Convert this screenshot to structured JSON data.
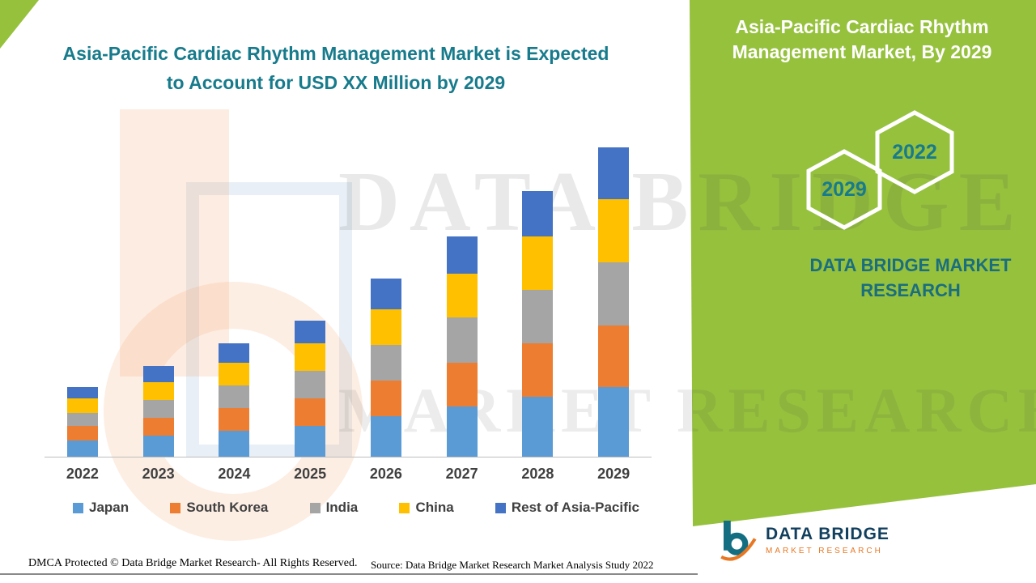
{
  "titles": {
    "main_line1": "Asia-Pacific Cardiac Rhythm Management Market is Expected",
    "main_line2": "to Account for USD XX Million by 2029",
    "panel_line1": "Asia-Pacific Cardiac Rhythm",
    "panel_line2": "Management Market, By 2029"
  },
  "badges": {
    "hex_back_label": "2029",
    "hex_front_label": "2022"
  },
  "panel_brand": "DATA BRIDGE MARKET RESEARCH",
  "watermark": {
    "line1": "DATA BRIDGE",
    "line2": "MARKET RESEARCH"
  },
  "footer": {
    "dmca": "DMCA Protected © Data Bridge Market Research- All Rights Reserved.",
    "source": "Source: Data Bridge Market Research Market Analysis Study 2022"
  },
  "logo": {
    "name": "DATA BRIDGE",
    "tagline": "MARKET RESEARCH"
  },
  "colors": {
    "panel_green": "#96C13D",
    "title_teal": "#177B8C",
    "brand_teal": "#1A6E7E",
    "logo_navy": "#113F5E",
    "logo_orange": "#E87722"
  },
  "chart_data": {
    "type": "bar",
    "stacked": true,
    "title": "Asia-Pacific Cardiac Rhythm Management Market is Expected to Account for USD XX Million by 2029",
    "xlabel": "",
    "ylabel": "",
    "y_axis_visible": false,
    "grid": false,
    "legend_position": "bottom",
    "units": "relative index (y-axis unlabeled in source, values shown as USD XX Million)",
    "ylim": [
      0,
      212
    ],
    "categories": [
      "2022",
      "2023",
      "2024",
      "2025",
      "2026",
      "2027",
      "2028",
      "2029"
    ],
    "series": [
      {
        "name": "Japan",
        "color": "#5B9BD5",
        "values": [
          10,
          13,
          16,
          19,
          25,
          31,
          37,
          43
        ]
      },
      {
        "name": "South Korea",
        "color": "#ED7D31",
        "values": [
          9,
          11,
          14,
          17,
          22,
          27,
          33,
          38
        ]
      },
      {
        "name": "India",
        "color": "#A5A5A5",
        "values": [
          8,
          11,
          14,
          17,
          22,
          28,
          33,
          39
        ]
      },
      {
        "name": "China",
        "color": "#FFC000",
        "values": [
          9,
          11,
          14,
          17,
          22,
          27,
          33,
          39
        ]
      },
      {
        "name": "Rest of Asia-Pacific",
        "color": "#4472C4",
        "values": [
          7,
          10,
          12,
          14,
          19,
          23,
          28,
          32
        ]
      }
    ],
    "totals": [
      43,
      56,
      70,
      84,
      110,
      136,
      164,
      191
    ]
  }
}
